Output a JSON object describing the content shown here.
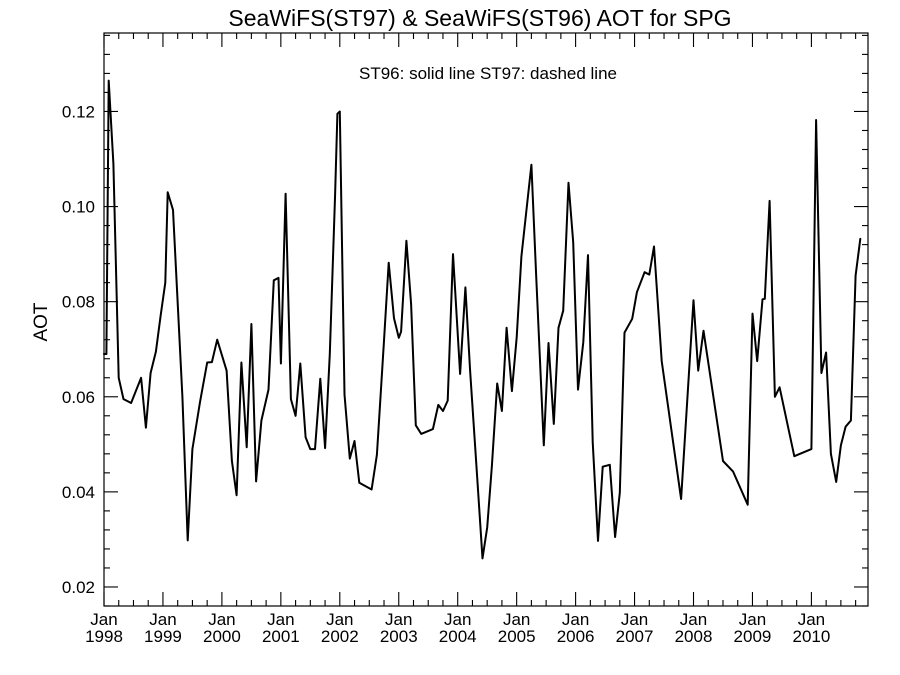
{
  "chart_data": {
    "type": "line",
    "title": "SeaWiFS(ST97) & SeaWiFS(ST96)  AOT for SPG",
    "annotation": "ST96: solid line   ST97: dashed line",
    "xlabel": "",
    "ylabel": "AOT",
    "xlim": [
      1998.0,
      2010.96
    ],
    "ylim": [
      0.016,
      0.1365
    ],
    "yticks": [
      0.02,
      0.04,
      0.06,
      0.08,
      0.1,
      0.12
    ],
    "ytick_labels": [
      "0.02",
      "0.04",
      "0.06",
      "0.08",
      "0.10",
      "0.12"
    ],
    "xticks": [
      {
        "value": 1998,
        "month": "Jan",
        "year": "1998"
      },
      {
        "value": 1999,
        "month": "Jan",
        "year": "1999"
      },
      {
        "value": 2000,
        "month": "Jan",
        "year": "2000"
      },
      {
        "value": 2001,
        "month": "Jan",
        "year": "2001"
      },
      {
        "value": 2002,
        "month": "Jan",
        "year": "2002"
      },
      {
        "value": 2003,
        "month": "Jan",
        "year": "2003"
      },
      {
        "value": 2004,
        "month": "Jan",
        "year": "2004"
      },
      {
        "value": 2005,
        "month": "Jan",
        "year": "2005"
      },
      {
        "value": 2006,
        "month": "Jan",
        "year": "2006"
      },
      {
        "value": 2007,
        "month": "Jan",
        "year": "2007"
      },
      {
        "value": 2008,
        "month": "Jan",
        "year": "2008"
      },
      {
        "value": 2009,
        "month": "Jan",
        "year": "2009"
      },
      {
        "value": 2010,
        "month": "Jan",
        "year": "2010"
      }
    ],
    "grid": false,
    "series": [
      {
        "name": "ST96",
        "style": "solid",
        "color": "#000000",
        "points": [
          [
            1998.0,
            0.069
          ],
          [
            1998.04,
            0.069
          ],
          [
            1998.08,
            0.1265
          ],
          [
            1998.16,
            0.109
          ],
          [
            1998.25,
            0.064
          ],
          [
            1998.33,
            0.0595
          ],
          [
            1998.46,
            0.0587
          ],
          [
            1998.63,
            0.064
          ],
          [
            1998.71,
            0.0535
          ],
          [
            1998.79,
            0.065
          ],
          [
            1998.88,
            0.0695
          ],
          [
            1998.96,
            0.077
          ],
          [
            1999.04,
            0.084
          ],
          [
            1999.08,
            0.103
          ],
          [
            1999.17,
            0.0993
          ],
          [
            1999.33,
            0.06
          ],
          [
            1999.42,
            0.0298
          ],
          [
            1999.5,
            0.049
          ],
          [
            1999.63,
            0.059
          ],
          [
            1999.75,
            0.0672
          ],
          [
            1999.83,
            0.0673
          ],
          [
            1999.92,
            0.072
          ],
          [
            2000.08,
            0.0655
          ],
          [
            2000.17,
            0.0465
          ],
          [
            2000.25,
            0.0393
          ],
          [
            2000.33,
            0.0672
          ],
          [
            2000.42,
            0.0494
          ],
          [
            2000.5,
            0.0753
          ],
          [
            2000.58,
            0.0422
          ],
          [
            2000.67,
            0.055
          ],
          [
            2000.79,
            0.0615
          ],
          [
            2000.88,
            0.0845
          ],
          [
            2000.96,
            0.085
          ],
          [
            2001.0,
            0.067
          ],
          [
            2001.08,
            0.1027
          ],
          [
            2001.17,
            0.0595
          ],
          [
            2001.25,
            0.056
          ],
          [
            2001.33,
            0.067
          ],
          [
            2001.42,
            0.0515
          ],
          [
            2001.5,
            0.049
          ],
          [
            2001.58,
            0.049
          ],
          [
            2001.67,
            0.0638
          ],
          [
            2001.75,
            0.0492
          ],
          [
            2001.83,
            0.069
          ],
          [
            2001.92,
            0.1025
          ],
          [
            2001.96,
            0.1195
          ],
          [
            2002.0,
            0.12
          ],
          [
            2002.08,
            0.0605
          ],
          [
            2002.17,
            0.047
          ],
          [
            2002.25,
            0.0507
          ],
          [
            2002.33,
            0.0419
          ],
          [
            2002.54,
            0.0405
          ],
          [
            2002.63,
            0.0478
          ],
          [
            2002.75,
            0.0718
          ],
          [
            2002.83,
            0.0882
          ],
          [
            2002.92,
            0.0765
          ],
          [
            2003.0,
            0.0724
          ],
          [
            2003.04,
            0.0737
          ],
          [
            2003.13,
            0.0928
          ],
          [
            2003.21,
            0.0795
          ],
          [
            2003.29,
            0.054
          ],
          [
            2003.38,
            0.0522
          ],
          [
            2003.58,
            0.0532
          ],
          [
            2003.67,
            0.0583
          ],
          [
            2003.75,
            0.057
          ],
          [
            2003.83,
            0.0592
          ],
          [
            2003.92,
            0.09
          ],
          [
            2004.04,
            0.0648
          ],
          [
            2004.13,
            0.083
          ],
          [
            2004.21,
            0.0655
          ],
          [
            2004.33,
            0.043
          ],
          [
            2004.42,
            0.026
          ],
          [
            2004.5,
            0.0325
          ],
          [
            2004.58,
            0.0455
          ],
          [
            2004.67,
            0.0628
          ],
          [
            2004.75,
            0.057
          ],
          [
            2004.83,
            0.0745
          ],
          [
            2004.92,
            0.0612
          ],
          [
            2005.0,
            0.0725
          ],
          [
            2005.08,
            0.0895
          ],
          [
            2005.25,
            0.1088
          ],
          [
            2005.33,
            0.0858
          ],
          [
            2005.46,
            0.0498
          ],
          [
            2005.54,
            0.0713
          ],
          [
            2005.63,
            0.0543
          ],
          [
            2005.71,
            0.0745
          ],
          [
            2005.79,
            0.0781
          ],
          [
            2005.88,
            0.105
          ],
          [
            2005.96,
            0.0925
          ],
          [
            2006.04,
            0.0615
          ],
          [
            2006.13,
            0.0715
          ],
          [
            2006.21,
            0.0898
          ],
          [
            2006.29,
            0.0505
          ],
          [
            2006.38,
            0.0297
          ],
          [
            2006.46,
            0.0453
          ],
          [
            2006.58,
            0.0457
          ],
          [
            2006.67,
            0.0305
          ],
          [
            2006.75,
            0.0398
          ],
          [
            2006.83,
            0.0735
          ],
          [
            2006.96,
            0.0764
          ],
          [
            2007.04,
            0.082
          ],
          [
            2007.17,
            0.0862
          ],
          [
            2007.25,
            0.0857
          ],
          [
            2007.33,
            0.0916
          ],
          [
            2007.46,
            0.0675
          ],
          [
            2007.79,
            0.0385
          ],
          [
            2008.0,
            0.0803
          ],
          [
            2008.08,
            0.0655
          ],
          [
            2008.17,
            0.0739
          ],
          [
            2008.5,
            0.0465
          ],
          [
            2008.67,
            0.0443
          ],
          [
            2008.92,
            0.0373
          ],
          [
            2009.0,
            0.0775
          ],
          [
            2009.08,
            0.0675
          ],
          [
            2009.17,
            0.0805
          ],
          [
            2009.21,
            0.0806
          ],
          [
            2009.29,
            0.1012
          ],
          [
            2009.38,
            0.06
          ],
          [
            2009.46,
            0.062
          ],
          [
            2009.71,
            0.0475
          ],
          [
            2010.0,
            0.049
          ],
          [
            2010.08,
            0.1182
          ],
          [
            2010.17,
            0.065
          ],
          [
            2010.25,
            0.0693
          ],
          [
            2010.33,
            0.048
          ],
          [
            2010.42,
            0.0421
          ],
          [
            2010.5,
            0.0498
          ],
          [
            2010.58,
            0.0537
          ],
          [
            2010.67,
            0.055
          ],
          [
            2010.75,
            0.0855
          ],
          [
            2010.83,
            0.0932
          ]
        ]
      }
    ]
  }
}
